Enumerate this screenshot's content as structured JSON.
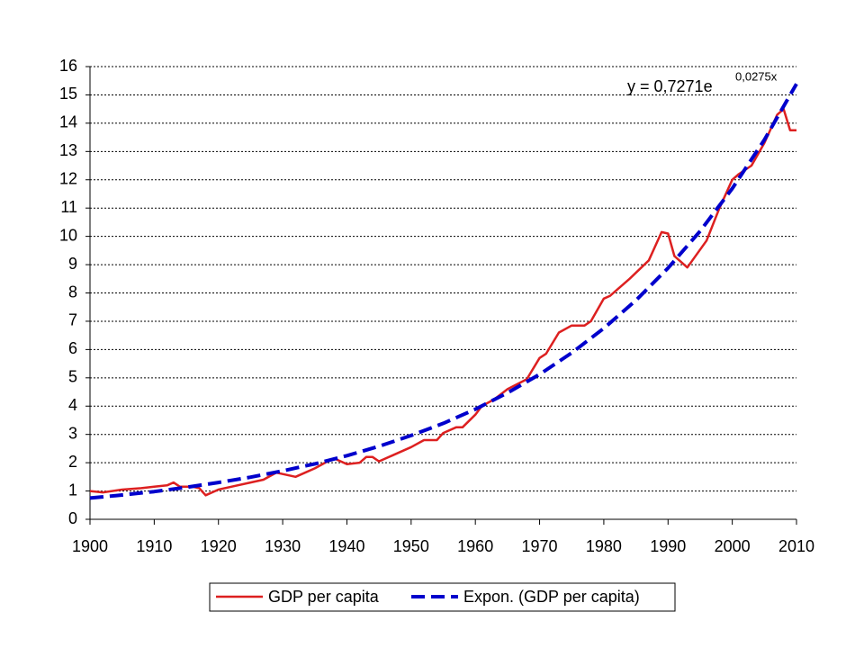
{
  "chart_data": {
    "type": "line",
    "equation": "y = 0,7271e",
    "equation_exponent": "0,0275x",
    "xlim": [
      1900,
      2010
    ],
    "xticks": [
      1900,
      1910,
      1920,
      1930,
      1940,
      1950,
      1960,
      1970,
      1980,
      1990,
      2000,
      2010
    ],
    "ylim": [
      0,
      16
    ],
    "yticks": [
      0,
      1,
      2,
      3,
      4,
      5,
      6,
      7,
      8,
      9,
      10,
      11,
      12,
      13,
      14,
      15,
      16
    ],
    "grid": true,
    "legend": "bottom",
    "series": [
      {
        "name": "GDP per capita",
        "color": "#dd2020",
        "style": "solid",
        "x": [
          1900,
          1902,
          1905,
          1908,
          1910,
          1912,
          1913,
          1914,
          1916,
          1917,
          1918,
          1920,
          1922,
          1925,
          1927,
          1929,
          1930,
          1932,
          1933,
          1935,
          1937,
          1938,
          1940,
          1942,
          1943,
          1944,
          1945,
          1947,
          1950,
          1952,
          1954,
          1955,
          1957,
          1958,
          1960,
          1961,
          1963,
          1965,
          1968,
          1970,
          1971,
          1973,
          1975,
          1977,
          1978,
          1980,
          1981,
          1984,
          1987,
          1989,
          1990,
          1991,
          1993,
          1996,
          1998,
          2000,
          2001,
          2003,
          2005,
          2007,
          2008,
          2009,
          2010
        ],
        "values": [
          1.0,
          0.95,
          1.05,
          1.1,
          1.15,
          1.2,
          1.3,
          1.15,
          1.15,
          1.1,
          0.85,
          1.05,
          1.15,
          1.3,
          1.4,
          1.65,
          1.6,
          1.5,
          1.6,
          1.8,
          2.05,
          2.15,
          1.95,
          2.0,
          2.2,
          2.2,
          2.05,
          2.25,
          2.55,
          2.8,
          2.8,
          3.05,
          3.25,
          3.25,
          3.7,
          4.0,
          4.25,
          4.6,
          4.95,
          5.7,
          5.85,
          6.6,
          6.85,
          6.85,
          7.0,
          7.8,
          7.9,
          8.5,
          9.15,
          10.15,
          10.1,
          9.3,
          8.9,
          9.85,
          11.0,
          12.0,
          12.2,
          12.5,
          13.3,
          14.3,
          14.5,
          13.75,
          13.75
        ]
      },
      {
        "name": "Expon. (GDP per capita)",
        "color": "#0000cc",
        "style": "dashed",
        "x": [
          1900,
          1905,
          1910,
          1915,
          1920,
          1925,
          1930,
          1935,
          1940,
          1945,
          1950,
          1955,
          1960,
          1965,
          1970,
          1975,
          1980,
          1985,
          1990,
          1995,
          2000,
          2005,
          2010
        ],
        "values": [
          0.75,
          0.86,
          0.98,
          1.13,
          1.3,
          1.49,
          1.71,
          1.96,
          2.25,
          2.58,
          2.96,
          3.39,
          3.89,
          4.47,
          5.12,
          5.88,
          6.75,
          7.74,
          8.88,
          10.19,
          11.69,
          13.41,
          15.39
        ]
      }
    ]
  }
}
